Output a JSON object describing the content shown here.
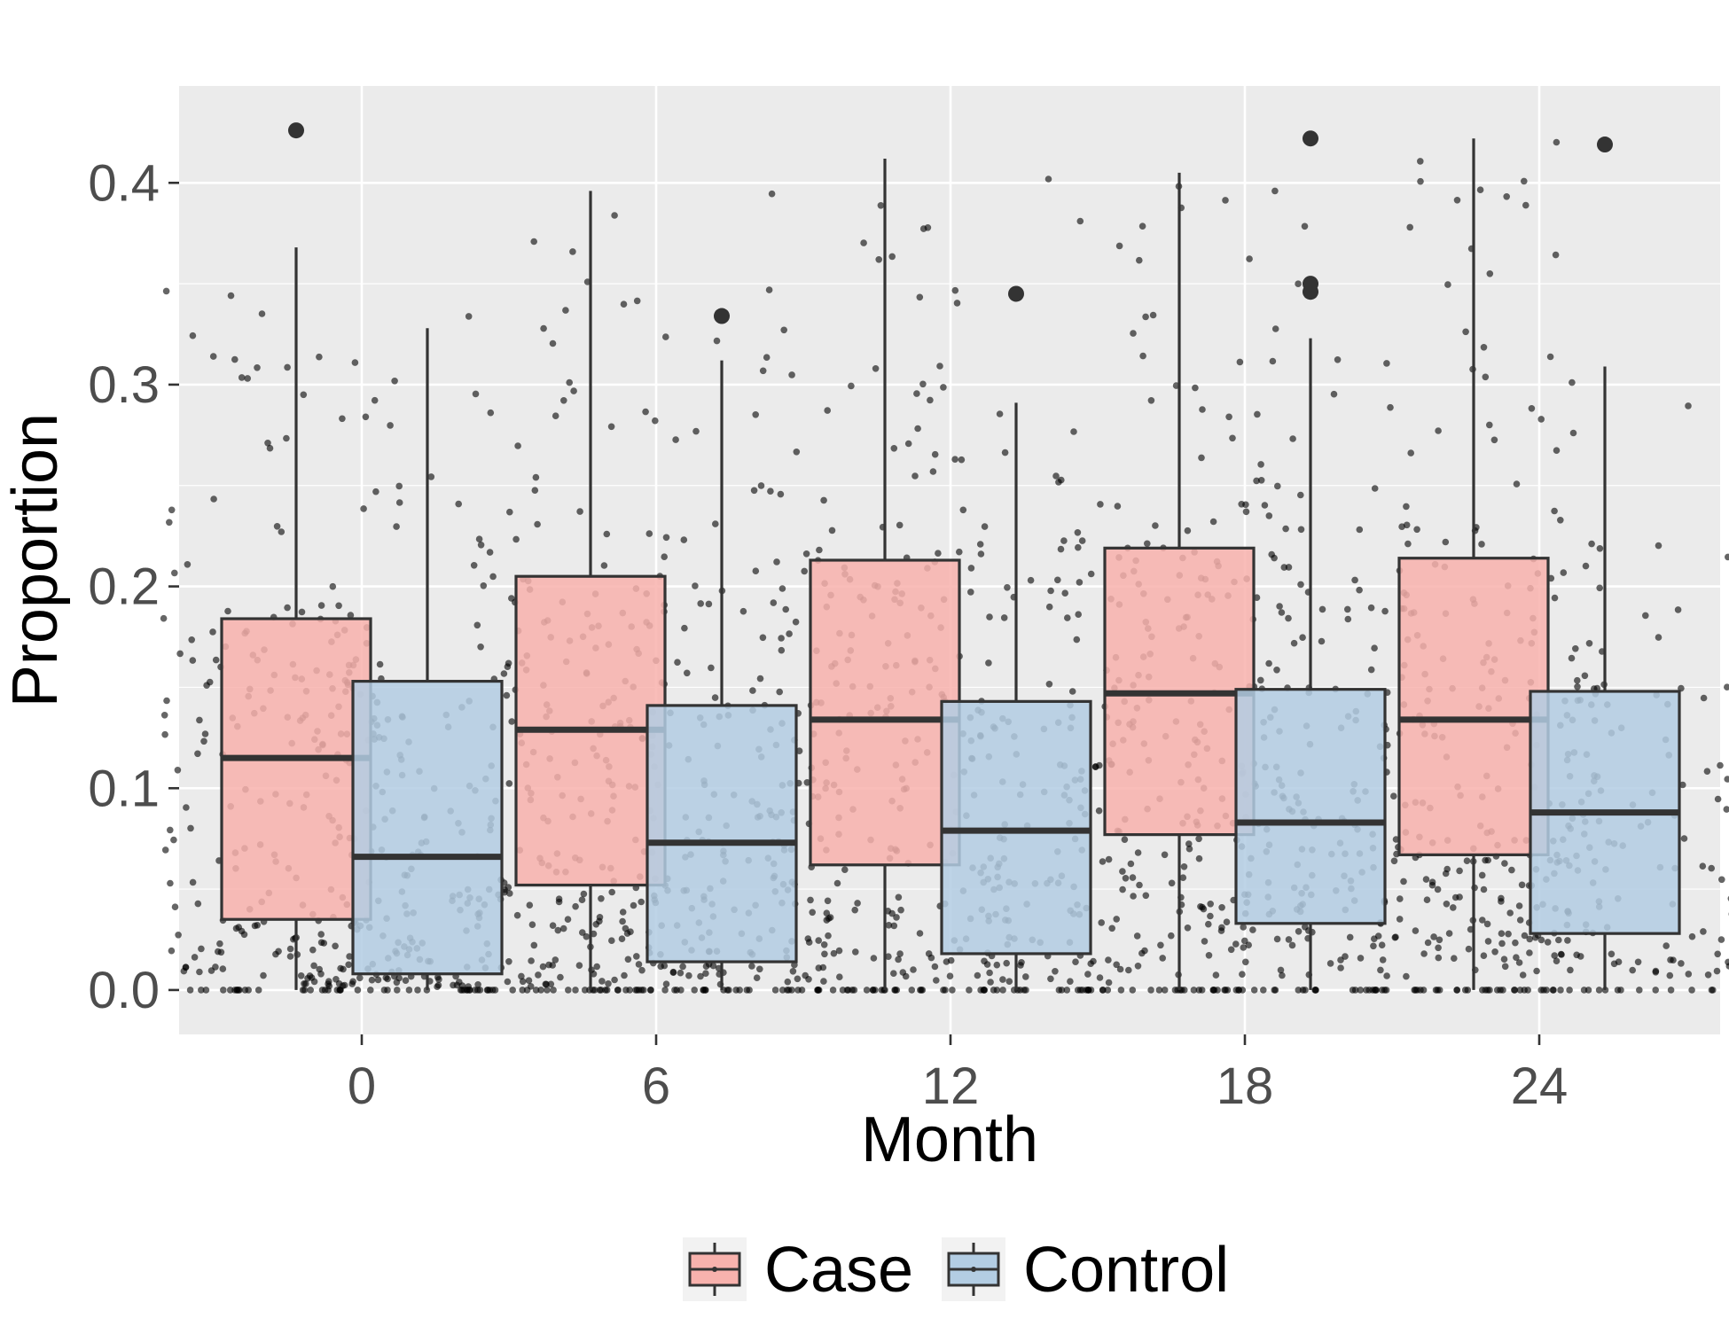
{
  "chart_data": {
    "type": "boxplot",
    "title": "",
    "xlabel": "Month",
    "ylabel": "Proportion",
    "categories": [
      "0",
      "6",
      "12",
      "18",
      "24"
    ],
    "ylim": [
      -0.022,
      0.448
    ],
    "yticks": [
      0.0,
      0.1,
      0.2,
      0.3,
      0.4
    ],
    "ytick_labels": [
      "0.0",
      "0.1",
      "0.2",
      "0.3",
      "0.4"
    ],
    "grid": true,
    "legend": {
      "position": "bottom",
      "entries": [
        "Case",
        "Control"
      ]
    },
    "series": [
      {
        "name": "Case",
        "color": "#f8b2ad",
        "boxes": [
          {
            "month": "0",
            "q1": 0.035,
            "median": 0.115,
            "q3": 0.184,
            "whisker_low": 0.0,
            "whisker_high": 0.368,
            "outliers": [
              0.426
            ]
          },
          {
            "month": "6",
            "q1": 0.052,
            "median": 0.129,
            "q3": 0.205,
            "whisker_low": 0.0,
            "whisker_high": 0.396,
            "outliers": []
          },
          {
            "month": "12",
            "q1": 0.062,
            "median": 0.134,
            "q3": 0.213,
            "whisker_low": 0.0,
            "whisker_high": 0.412,
            "outliers": []
          },
          {
            "month": "18",
            "q1": 0.077,
            "median": 0.147,
            "q3": 0.219,
            "whisker_low": 0.0,
            "whisker_high": 0.405,
            "outliers": []
          },
          {
            "month": "24",
            "q1": 0.067,
            "median": 0.134,
            "q3": 0.214,
            "whisker_low": 0.0,
            "whisker_high": 0.422,
            "outliers": []
          }
        ]
      },
      {
        "name": "Control",
        "color": "#b3cde3",
        "boxes": [
          {
            "month": "0",
            "q1": 0.008,
            "median": 0.066,
            "q3": 0.153,
            "whisker_low": 0.0,
            "whisker_high": 0.328,
            "outliers": []
          },
          {
            "month": "6",
            "q1": 0.014,
            "median": 0.073,
            "q3": 0.141,
            "whisker_low": 0.0,
            "whisker_high": 0.312,
            "outliers": [
              0.334
            ]
          },
          {
            "month": "12",
            "q1": 0.018,
            "median": 0.079,
            "q3": 0.143,
            "whisker_low": 0.0,
            "whisker_high": 0.291,
            "outliers": [
              0.345
            ]
          },
          {
            "month": "18",
            "q1": 0.033,
            "median": 0.083,
            "q3": 0.149,
            "whisker_low": 0.0,
            "whisker_high": 0.323,
            "outliers": [
              0.346,
              0.35,
              0.422
            ]
          },
          {
            "month": "24",
            "q1": 0.028,
            "median": 0.088,
            "q3": 0.148,
            "whisker_low": 0.0,
            "whisker_high": 0.309,
            "outliers": [
              0.419
            ]
          }
        ]
      }
    ],
    "raw_points": "jittered individual observations overlaid as small semi-transparent black dots"
  },
  "colors": {
    "panel_background": "#ebebeb",
    "gridline": "#ffffff",
    "box_outline": "#333333",
    "point": "#000000"
  }
}
